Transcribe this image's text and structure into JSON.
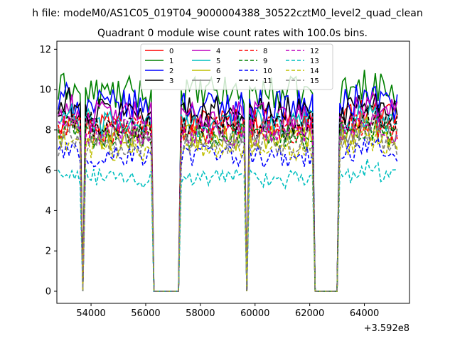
{
  "suptitle": "h file: modeM0/AS1C05_019T04_9000004388_30522cztM0_level2_quad_clean",
  "chart_data": {
    "type": "line",
    "title": "Quadrant 0 module wise count rates with 100.0s bins.",
    "xlabel": "",
    "ylabel": "",
    "x_offset_label": "+3.592e8",
    "xlim": [
      52750,
      65650
    ],
    "ylim": [
      -0.6,
      12.4
    ],
    "xticks": [
      54000,
      56000,
      58000,
      60000,
      62000,
      64000
    ],
    "yticks": [
      0,
      2,
      4,
      6,
      8,
      10,
      12
    ],
    "x_tick_labels": [
      "54000",
      "56000",
      "58000",
      "60000",
      "62000",
      "64000"
    ],
    "y_tick_labels": [
      "0",
      "2",
      "4",
      "6",
      "8",
      "10",
      "12"
    ],
    "segments": [
      {
        "start": 52800,
        "end": 53600
      },
      {
        "start": 53800,
        "end": 56200
      },
      {
        "start": 57300,
        "end": 59600
      },
      {
        "start": 59800,
        "end": 62100
      },
      {
        "start": 63100,
        "end": 65200
      }
    ],
    "gaps_at_zero": [
      [
        53600,
        53800
      ],
      [
        56200,
        57300
      ],
      [
        59600,
        59800
      ],
      [
        62100,
        63100
      ]
    ],
    "bin_seconds": 100,
    "legend": {
      "location": "top-center",
      "columns": 4
    },
    "series": [
      {
        "name": "0",
        "color": "#ff0000",
        "dash": "solid",
        "level": 8.4
      },
      {
        "name": "1",
        "color": "#008000",
        "dash": "solid",
        "level": 9.8
      },
      {
        "name": "2",
        "color": "#0000ff",
        "dash": "solid",
        "level": 9.2
      },
      {
        "name": "3",
        "color": "#000000",
        "dash": "solid",
        "level": 8.9
      },
      {
        "name": "4",
        "color": "#bf00bf",
        "dash": "solid",
        "level": 8.7
      },
      {
        "name": "5",
        "color": "#00bfbf",
        "dash": "solid",
        "level": 8.3
      },
      {
        "name": "6",
        "color": "#bfbf00",
        "dash": "solid",
        "level": 7.6
      },
      {
        "name": "7",
        "color": "#808080",
        "dash": "solid",
        "level": 7.9
      },
      {
        "name": "8",
        "color": "#ff0000",
        "dash": "dashed",
        "level": 8.0
      },
      {
        "name": "9",
        "color": "#008000",
        "dash": "dashed",
        "level": 7.7
      },
      {
        "name": "10",
        "color": "#0000ff",
        "dash": "dashed",
        "level": 6.7
      },
      {
        "name": "11",
        "color": "#000000",
        "dash": "dashed",
        "level": 8.2
      },
      {
        "name": "12",
        "color": "#bf00bf",
        "dash": "dashed",
        "level": 7.9
      },
      {
        "name": "13",
        "color": "#00bfbf",
        "dash": "dashed",
        "level": 5.6
      },
      {
        "name": "14",
        "color": "#bfbf00",
        "dash": "dashed",
        "level": 7.1
      },
      {
        "name": "15",
        "color": "#808080",
        "dash": "dashed",
        "level": 7.3
      }
    ]
  }
}
